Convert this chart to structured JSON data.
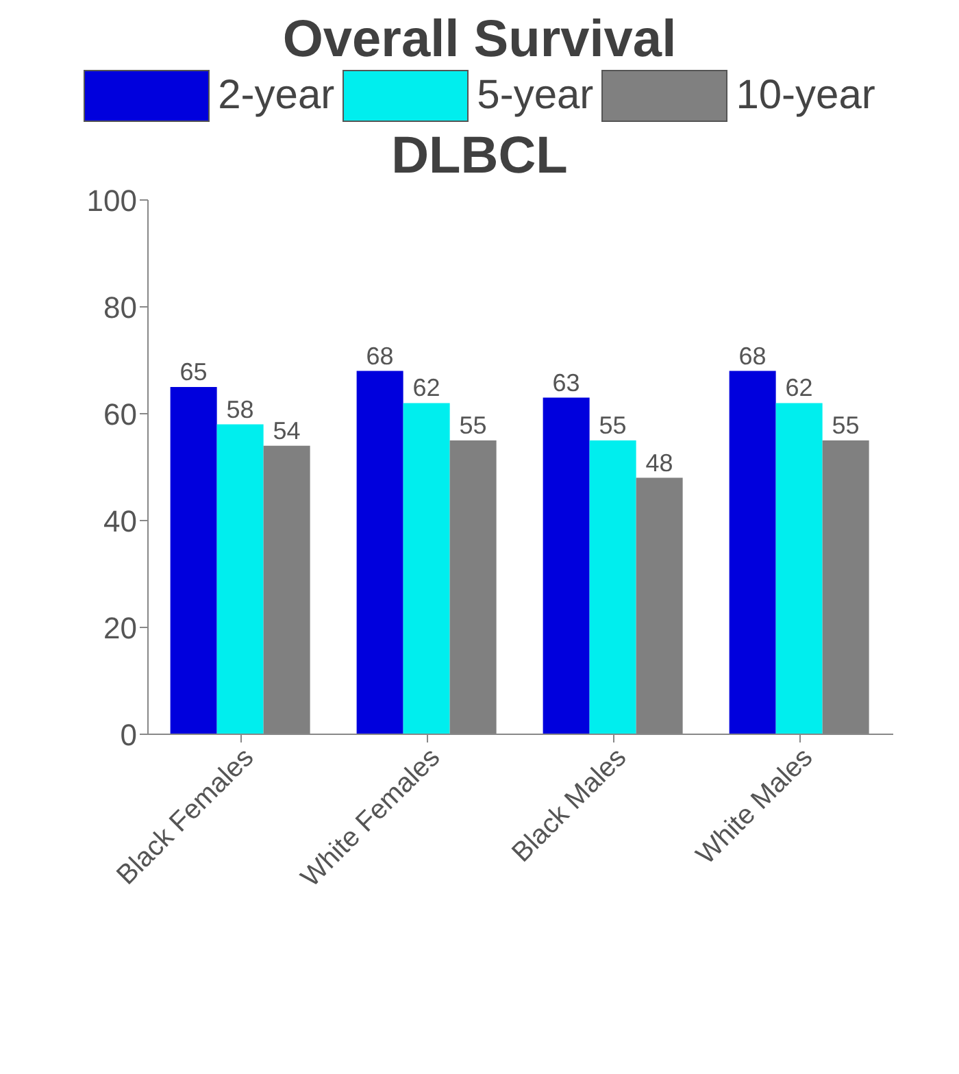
{
  "chart_data": {
    "type": "bar",
    "title": "Overall Survival",
    "subtitle": "DLBCL",
    "categories": [
      "Black Females",
      "White Females",
      "Black Males",
      "White Males"
    ],
    "series": [
      {
        "name": "2-year",
        "color": "#0000dd",
        "values": [
          65,
          68,
          63,
          68
        ]
      },
      {
        "name": "5-year",
        "color": "#00eeee",
        "values": [
          58,
          62,
          55,
          62
        ]
      },
      {
        "name": "10-year",
        "color": "#808080",
        "values": [
          54,
          55,
          48,
          55
        ]
      }
    ],
    "ylim": [
      0,
      100
    ],
    "yticks": [
      0,
      20,
      40,
      60,
      80,
      100
    ],
    "data_labels": true,
    "legend": "top",
    "grid": false
  }
}
